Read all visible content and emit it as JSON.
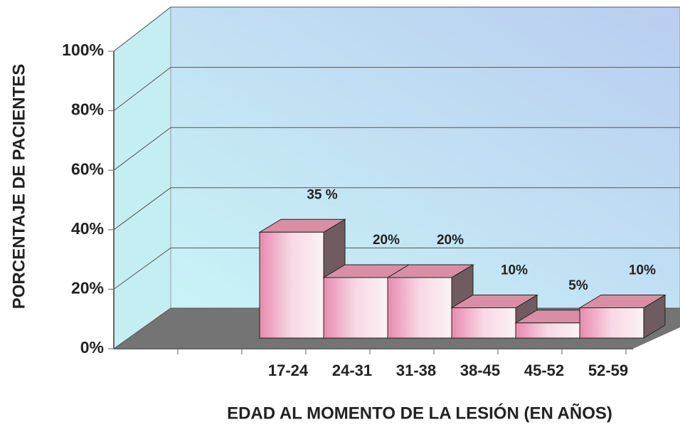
{
  "chart_data": {
    "type": "bar3d",
    "xlabel": "EDAD AL MOMENTO DE LA LESIÓN (EN AÑOS)",
    "ylabel": "PORCENTAJE DE PACIENTES",
    "categories": [
      "17-24",
      "24-31",
      "31-38",
      "38-45",
      "45-52",
      "52-59"
    ],
    "values": [
      35,
      20,
      20,
      10,
      5,
      10
    ],
    "value_labels": [
      "35 %",
      "20%",
      "20%",
      "10%",
      "5%",
      "10%"
    ],
    "color": "#f0a8c4",
    "ylim": [
      0,
      100
    ],
    "yticks": [
      {
        "value": 0,
        "label": "0%"
      },
      {
        "value": 20,
        "label": "20%"
      },
      {
        "value": 40,
        "label": "40%"
      },
      {
        "value": 60,
        "label": "60%"
      },
      {
        "value": 80,
        "label": "80%"
      },
      {
        "value": 100,
        "label": "100%"
      }
    ],
    "grid": true
  }
}
